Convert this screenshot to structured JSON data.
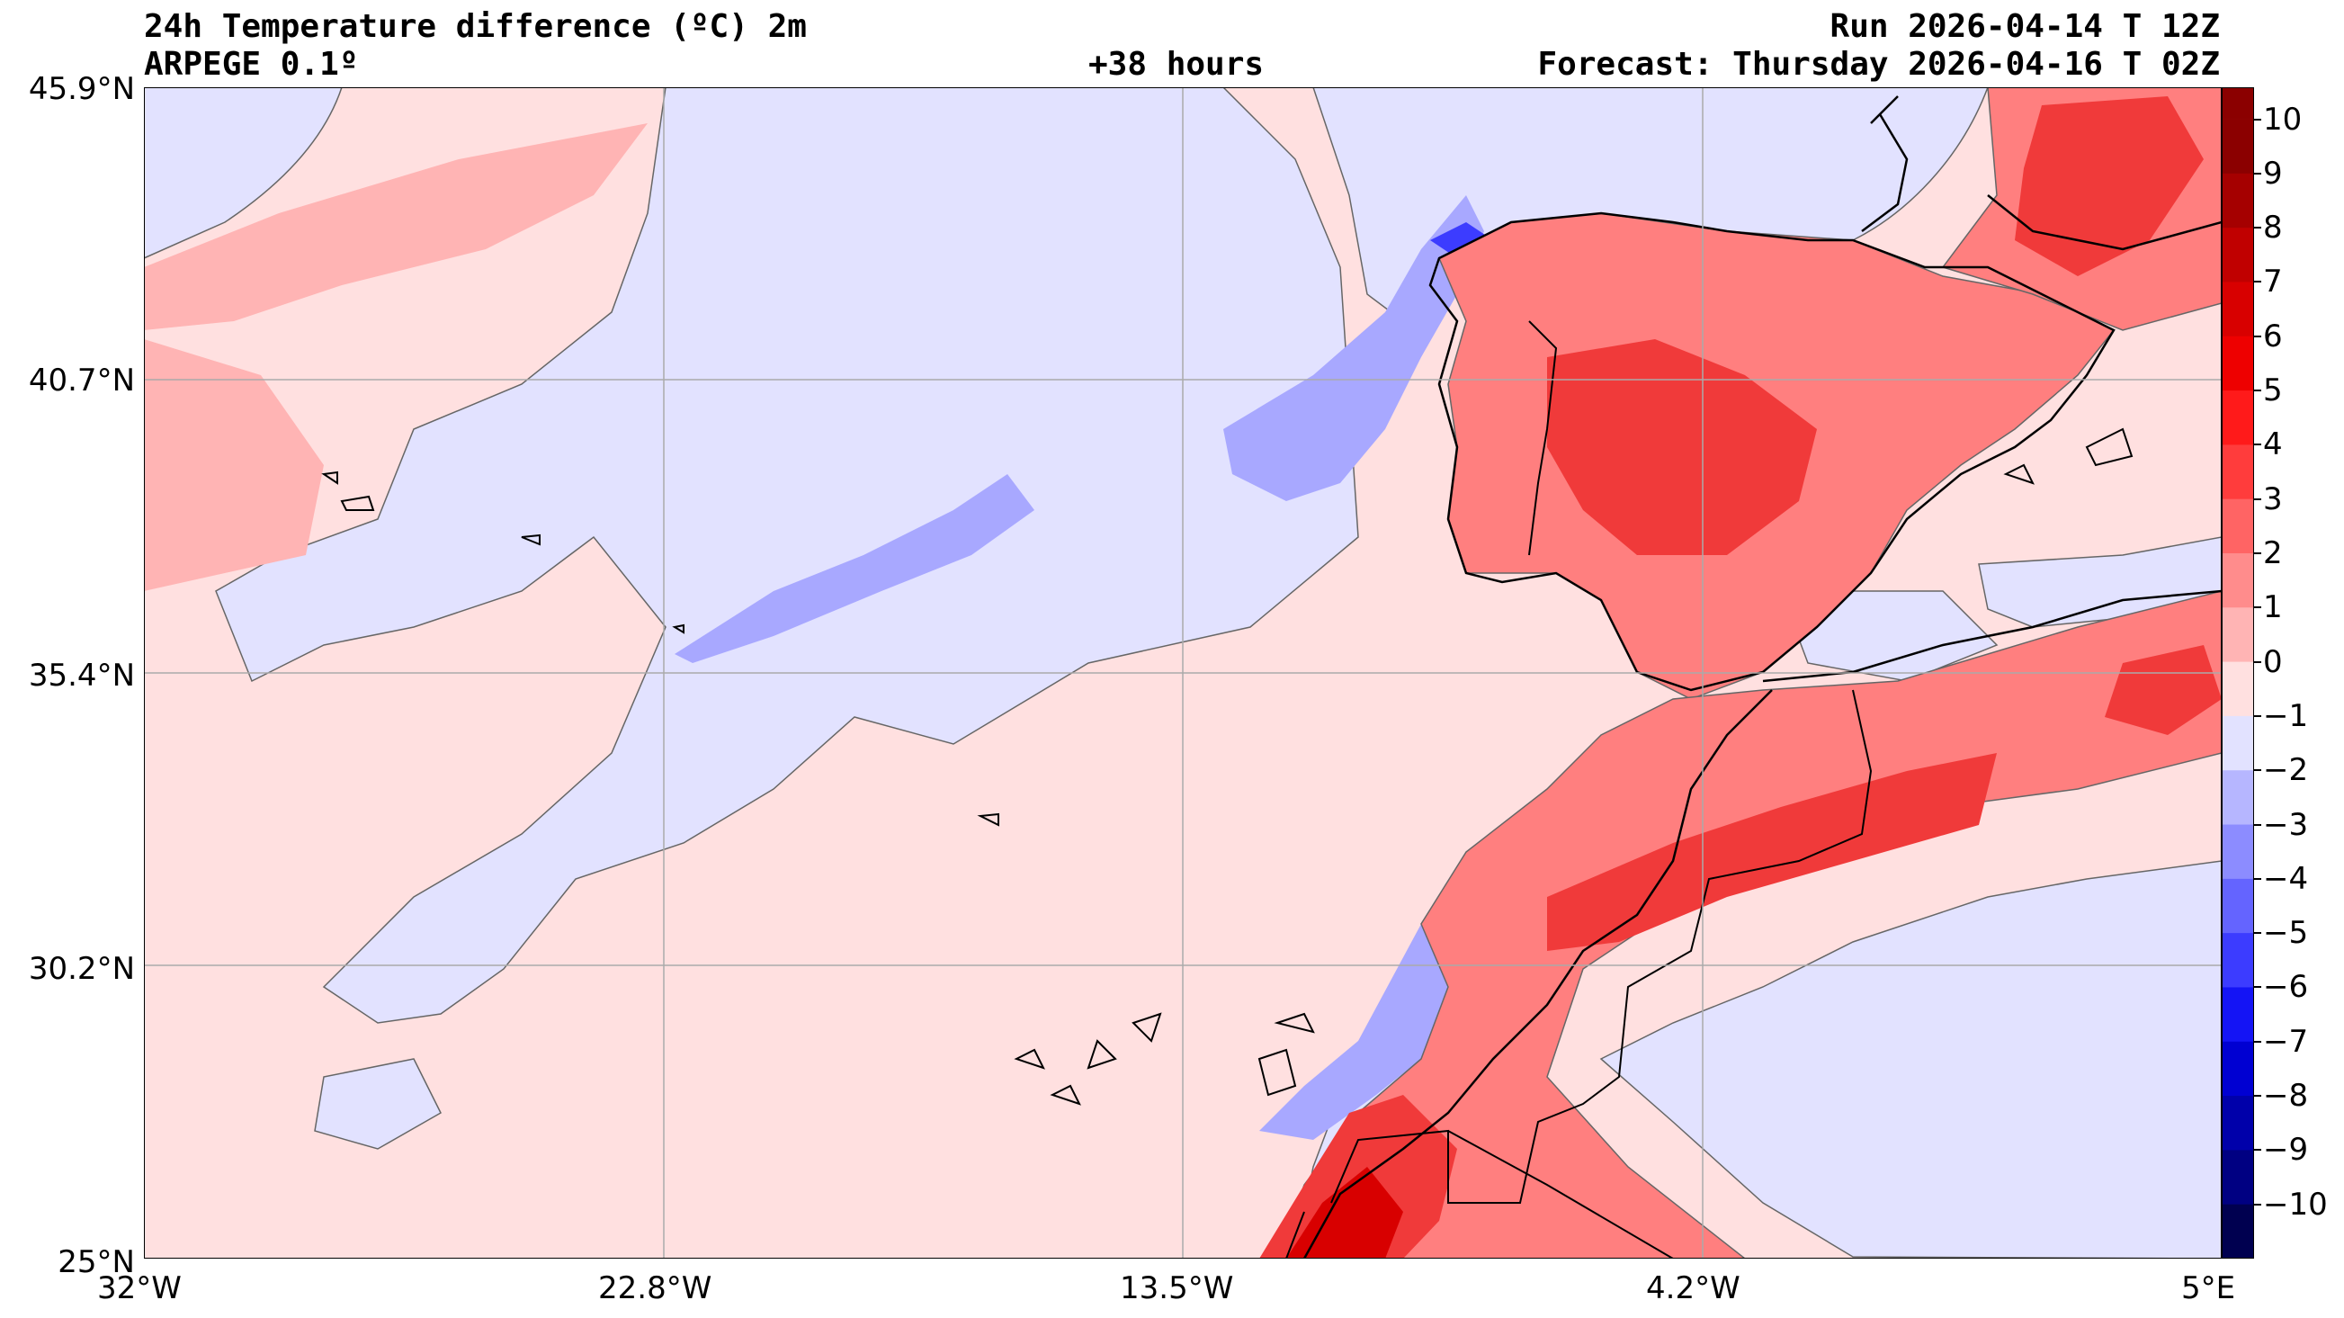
{
  "header": {
    "title": "24h Temperature difference (ºC) 2m",
    "model": "ARPEGE 0.1º",
    "lead": "+38 hours",
    "run": "Run 2026-04-14 T 12Z",
    "forecast": "Forecast: Thursday 2026-04-16 T 02Z"
  },
  "axes": {
    "lat_labels": [
      "45.9°N",
      "40.7°N",
      "35.4°N",
      "30.2°N",
      "25°N"
    ],
    "lon_labels": [
      "32°W",
      "22.8°W",
      "13.5°W",
      "4.2°W",
      "5°E"
    ]
  },
  "colorbar": {
    "ticks": [
      "10",
      "9",
      "8",
      "7",
      "6",
      "5",
      "4",
      "3",
      "2",
      "1",
      "0",
      "−1",
      "−2",
      "−3",
      "−4",
      "−5",
      "−6",
      "−7",
      "−8",
      "−9",
      "−10"
    ],
    "colors": [
      "#8b0000",
      "#a50000",
      "#c00000",
      "#d80000",
      "#ee0000",
      "#ff1a1a",
      "#ff3c3c",
      "#ff6464",
      "#ff8c8c",
      "#ffb4b4",
      "#ffe0e0",
      "#e2e2ff",
      "#b6b6ff",
      "#8c8cff",
      "#6464ff",
      "#3c3cff",
      "#1414f5",
      "#0000d2",
      "#0000aa",
      "#000082",
      "#000050"
    ],
    "land_hot": "#f03a3a",
    "land_warm": "#ff7f7f",
    "sea_pink": "#ffe0e0",
    "sea_blue": "#e2e2ff",
    "cold_band": "#a8a8ff"
  }
}
